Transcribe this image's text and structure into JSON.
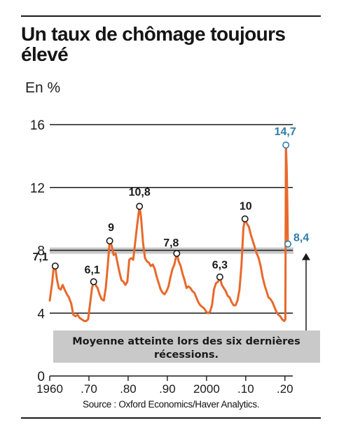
{
  "title_line1": "Un taux de chômage toujours",
  "title_line2": "élevé",
  "unit_label": "En %",
  "source": "Source : Oxford Economics/Haver Analytics.",
  "colors": {
    "line": "#e8692b",
    "highlight": "#2f7cab",
    "band": "#c9c9c9",
    "grid": "#1a1a1a"
  },
  "chart_data": {
    "type": "line",
    "title": "Un taux de chômage toujours élevé",
    "ylabel": "En %",
    "ylim": [
      0,
      16
    ],
    "yticks": [
      0,
      4,
      8,
      12,
      16
    ],
    "xlim": [
      1960,
      2022
    ],
    "xtick_labels": [
      "1960",
      ".70",
      ".80",
      ".90",
      "2000",
      ".10",
      ".20"
    ],
    "xtick_values": [
      1960,
      1970,
      1980,
      1990,
      2000,
      2010,
      2020
    ],
    "series": [
      {
        "values": [
          [
            1960.0,
            4.8
          ],
          [
            1960.6,
            5.9
          ],
          [
            1961.0,
            6.9
          ],
          [
            1961.4,
            7.0
          ],
          [
            1961.8,
            6.2
          ],
          [
            1962.3,
            5.6
          ],
          [
            1962.8,
            5.5
          ],
          [
            1963.3,
            5.8
          ],
          [
            1963.8,
            5.5
          ],
          [
            1964.4,
            5.2
          ],
          [
            1964.9,
            5.0
          ],
          [
            1965.5,
            4.6
          ],
          [
            1966.0,
            3.9
          ],
          [
            1966.6,
            3.8
          ],
          [
            1967.1,
            3.9
          ],
          [
            1967.6,
            3.7
          ],
          [
            1968.2,
            3.6
          ],
          [
            1968.8,
            3.5
          ],
          [
            1969.3,
            3.5
          ],
          [
            1969.8,
            3.6
          ],
          [
            1970.3,
            4.6
          ],
          [
            1970.8,
            5.6
          ],
          [
            1971.2,
            6.0
          ],
          [
            1971.7,
            5.8
          ],
          [
            1972.2,
            5.6
          ],
          [
            1972.7,
            5.2
          ],
          [
            1973.2,
            4.9
          ],
          [
            1973.8,
            4.8
          ],
          [
            1974.3,
            5.6
          ],
          [
            1974.8,
            7.0
          ],
          [
            1975.3,
            8.6
          ],
          [
            1975.8,
            8.3
          ],
          [
            1976.3,
            7.7
          ],
          [
            1976.8,
            7.8
          ],
          [
            1977.3,
            7.2
          ],
          [
            1977.8,
            6.6
          ],
          [
            1978.3,
            6.1
          ],
          [
            1978.8,
            6.0
          ],
          [
            1979.3,
            5.8
          ],
          [
            1979.8,
            6.0
          ],
          [
            1980.3,
            7.4
          ],
          [
            1980.8,
            7.5
          ],
          [
            1981.3,
            7.4
          ],
          [
            1981.8,
            8.5
          ],
          [
            1982.3,
            9.6
          ],
          [
            1982.9,
            10.8
          ],
          [
            1983.3,
            10.1
          ],
          [
            1983.8,
            8.5
          ],
          [
            1984.3,
            7.5
          ],
          [
            1984.8,
            7.3
          ],
          [
            1985.3,
            7.2
          ],
          [
            1985.8,
            7.0
          ],
          [
            1986.3,
            7.1
          ],
          [
            1986.8,
            6.8
          ],
          [
            1987.3,
            6.3
          ],
          [
            1987.8,
            5.9
          ],
          [
            1988.3,
            5.5
          ],
          [
            1988.8,
            5.3
          ],
          [
            1989.3,
            5.2
          ],
          [
            1989.8,
            5.4
          ],
          [
            1990.3,
            5.7
          ],
          [
            1990.8,
            6.3
          ],
          [
            1991.3,
            6.8
          ],
          [
            1991.8,
            7.1
          ],
          [
            1992.4,
            7.8
          ],
          [
            1992.9,
            7.3
          ],
          [
            1993.4,
            7.0
          ],
          [
            1993.9,
            6.5
          ],
          [
            1994.4,
            6.1
          ],
          [
            1994.9,
            5.6
          ],
          [
            1995.4,
            5.7
          ],
          [
            1995.9,
            5.6
          ],
          [
            1996.4,
            5.4
          ],
          [
            1996.9,
            5.3
          ],
          [
            1997.4,
            5.0
          ],
          [
            1997.9,
            4.7
          ],
          [
            1998.4,
            4.5
          ],
          [
            1998.9,
            4.4
          ],
          [
            1999.4,
            4.3
          ],
          [
            1999.9,
            4.1
          ],
          [
            2000.4,
            4.0
          ],
          [
            2000.9,
            4.1
          ],
          [
            2001.4,
            4.5
          ],
          [
            2001.9,
            5.5
          ],
          [
            2002.4,
            5.9
          ],
          [
            2002.9,
            6.0
          ],
          [
            2003.4,
            6.3
          ],
          [
            2003.9,
            5.8
          ],
          [
            2004.4,
            5.6
          ],
          [
            2004.9,
            5.4
          ],
          [
            2005.4,
            5.1
          ],
          [
            2005.9,
            5.0
          ],
          [
            2006.4,
            4.7
          ],
          [
            2006.9,
            4.5
          ],
          [
            2007.4,
            4.5
          ],
          [
            2007.9,
            4.8
          ],
          [
            2008.4,
            5.5
          ],
          [
            2008.9,
            7.0
          ],
          [
            2009.4,
            9.4
          ],
          [
            2009.8,
            10.0
          ],
          [
            2010.3,
            9.7
          ],
          [
            2010.8,
            9.5
          ],
          [
            2011.3,
            9.0
          ],
          [
            2011.8,
            8.6
          ],
          [
            2012.3,
            8.2
          ],
          [
            2012.8,
            7.8
          ],
          [
            2013.3,
            7.5
          ],
          [
            2013.8,
            7.0
          ],
          [
            2014.3,
            6.3
          ],
          [
            2014.8,
            5.8
          ],
          [
            2015.3,
            5.4
          ],
          [
            2015.8,
            5.0
          ],
          [
            2016.3,
            4.9
          ],
          [
            2016.8,
            4.7
          ],
          [
            2017.3,
            4.4
          ],
          [
            2017.8,
            4.1
          ],
          [
            2018.3,
            3.9
          ],
          [
            2018.8,
            3.8
          ],
          [
            2019.3,
            3.6
          ],
          [
            2019.8,
            3.5
          ],
          [
            2020.1,
            3.6
          ],
          [
            2020.25,
            14.7
          ],
          [
            2020.45,
            13.3
          ],
          [
            2020.6,
            11.1
          ],
          [
            2020.75,
            8.4
          ]
        ]
      }
    ],
    "annotations": [
      {
        "x": 1961.4,
        "y": 7.0,
        "label": "7,1",
        "highlight": false
      },
      {
        "x": 1971.2,
        "y": 6.0,
        "label": "6,1",
        "highlight": false
      },
      {
        "x": 1975.3,
        "y": 8.6,
        "label": "9",
        "highlight": false
      },
      {
        "x": 1982.9,
        "y": 10.8,
        "label": "10,8",
        "highlight": false
      },
      {
        "x": 1992.4,
        "y": 7.8,
        "label": "7,8",
        "highlight": false
      },
      {
        "x": 2003.4,
        "y": 6.3,
        "label": "6,3",
        "highlight": false
      },
      {
        "x": 2009.8,
        "y": 10.0,
        "label": "10",
        "highlight": false
      },
      {
        "x": 2020.25,
        "y": 14.7,
        "label": "14,7",
        "highlight": true
      },
      {
        "x": 2020.75,
        "y": 8.4,
        "label": "8,4",
        "highlight": true
      }
    ],
    "reference_band": {
      "value": 8.0,
      "note": "Moyenne atteinte lors des six dernières récessions."
    },
    "grid": true
  }
}
